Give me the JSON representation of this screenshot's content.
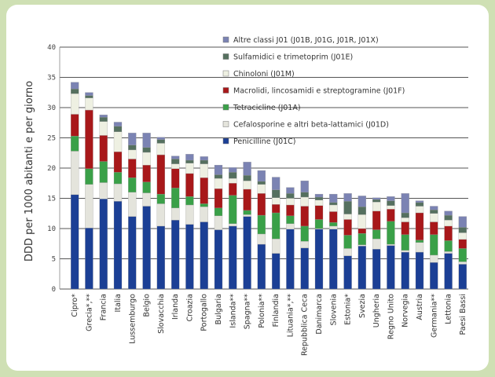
{
  "chart_data": {
    "type": "bar",
    "stacked": true,
    "ylabel": "DDD per 1000 abitanti e per giorno",
    "ylim": [
      0,
      40
    ],
    "yticks": [
      "0",
      "5",
      "10",
      "15",
      "20",
      "25",
      "30",
      "35",
      "40"
    ],
    "grid": true,
    "legend_position": "top-right",
    "categories": [
      "Cipro*",
      "Grecia*,**",
      "Francia",
      "Italia",
      "Lussemburgo",
      "Belgio",
      "Slovacchia",
      "Irlanda",
      "Croazia",
      "Portogallo",
      "Bulgaria",
      "Islanda**",
      "Spagna**",
      "Polonia**",
      "Finlandia",
      "Lituania*,**",
      "Repubblica Ceca",
      "Danimarca",
      "Slovenia",
      "Estonia*",
      "Svezia",
      "Ungheria",
      "Regno Unito",
      "Norvegia",
      "Austria",
      "Germania**",
      "Lettonia",
      "Paesi Bassi"
    ],
    "series": [
      {
        "name": "Penicilline (J01C)",
        "color": "#1b3f95",
        "values": [
          15.6,
          10.1,
          14.9,
          14.5,
          12.0,
          13.7,
          10.4,
          11.4,
          10.7,
          11.1,
          9.8,
          10.4,
          12.0,
          7.4,
          5.9,
          9.9,
          6.8,
          9.9,
          9.9,
          5.5,
          7.1,
          6.6,
          7.2,
          6.1,
          6.1,
          4.4,
          5.9,
          4.1
        ]
      },
      {
        "name": "Cefalosporine e altri beta-lattamici (J01D)",
        "color": "#e4e4dc",
        "values": [
          7.2,
          7.2,
          2.7,
          2.9,
          4.0,
          2.2,
          3.7,
          2.0,
          3.2,
          2.5,
          2.3,
          0.4,
          0.3,
          1.7,
          2.4,
          0.9,
          1.1,
          0.1,
          0.5,
          1.2,
          0.2,
          1.7,
          0.2,
          0.3,
          1.6,
          1.2,
          0.3,
          0.4
        ]
      },
      {
        "name": "Tetracicline (J01A)",
        "color": "#3aa048",
        "values": [
          2.5,
          2.6,
          3.5,
          1.9,
          2.4,
          1.8,
          1.6,
          3.3,
          1.4,
          0.5,
          1.3,
          4.7,
          0.7,
          3.1,
          4.3,
          1.3,
          2.5,
          1.5,
          0.6,
          2.2,
          1.9,
          1.5,
          3.8,
          2.6,
          0.4,
          3.4,
          1.8,
          2.2
        ]
      },
      {
        "name": "Macrolidi, lincosamidi e streptogramine (J01F)",
        "color": "#a8181a",
        "values": [
          3.6,
          9.7,
          4.3,
          3.4,
          3.1,
          2.8,
          6.5,
          3.2,
          3.8,
          4.3,
          3.2,
          2.0,
          3.5,
          3.6,
          1.4,
          1.8,
          3.3,
          2.3,
          1.8,
          2.6,
          0.8,
          3.1,
          2.0,
          2.1,
          4.5,
          2.1,
          2.4,
          1.5
        ]
      },
      {
        "name": "Chinoloni (J01M)",
        "color": "#eef0e2",
        "values": [
          3.4,
          2.0,
          2.3,
          3.3,
          1.5,
          2.1,
          1.9,
          0.8,
          1.7,
          2.3,
          1.7,
          0.8,
          1.4,
          1.5,
          1.1,
          1.1,
          1.5,
          0.9,
          1.1,
          0.9,
          2.3,
          1.5,
          0.6,
          0.7,
          1.1,
          1.4,
          1.0,
          1.1
        ]
      },
      {
        "name": "Sulfamidici e trimetoprim (J01E)",
        "color": "#55705f",
        "values": [
          0.8,
          0.4,
          0.7,
          0.9,
          0.8,
          0.8,
          0.6,
          0.8,
          0.5,
          0.6,
          0.6,
          1.0,
          0.9,
          0.5,
          1.3,
          0.8,
          0.8,
          0.5,
          0.4,
          2.1,
          1.3,
          0.4,
          0.8,
          0.8,
          0.6,
          0.6,
          0.8,
          0.9
        ]
      },
      {
        "name": "Altre classi J01 (J01B, J01G, J01R, J01X)",
        "color": "#7b83b3",
        "values": [
          1.1,
          0.5,
          0.4,
          0.7,
          2.0,
          2.4,
          0.4,
          0.5,
          1.0,
          0.6,
          1.6,
          0.8,
          2.2,
          1.8,
          2.1,
          1.0,
          1.9,
          0.5,
          1.4,
          1.3,
          1.8,
          0.3,
          0.7,
          3.2,
          0.3,
          0.6,
          0.7,
          1.8
        ]
      }
    ]
  }
}
